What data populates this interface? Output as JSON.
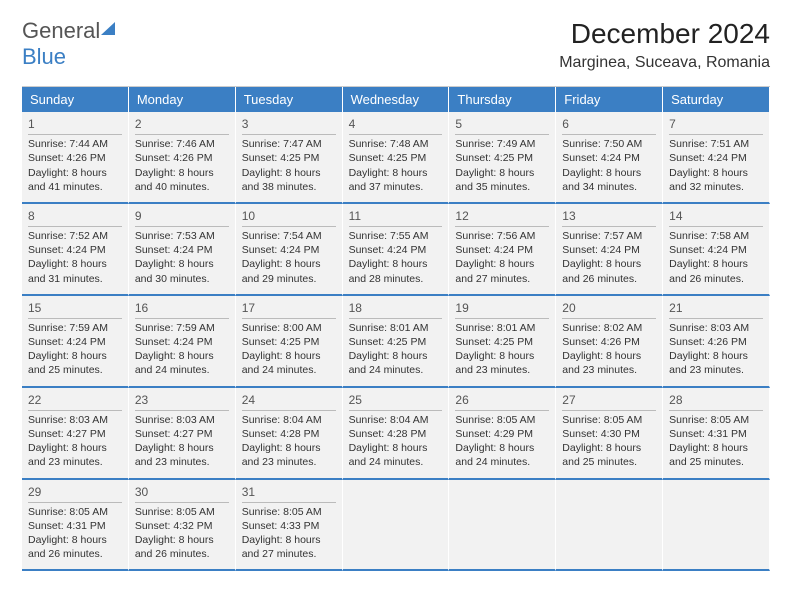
{
  "logo": {
    "text1": "General",
    "text2": "Blue"
  },
  "title": "December 2024",
  "location": "Marginea, Suceava, Romania",
  "colors": {
    "header_bg": "#3b7fc4",
    "header_text": "#ffffff",
    "cell_bg": "#f2f2f2",
    "row_border": "#3b7fc4",
    "logo_blue": "#3b7fc4",
    "text": "#333333"
  },
  "day_headers": [
    "Sunday",
    "Monday",
    "Tuesday",
    "Wednesday",
    "Thursday",
    "Friday",
    "Saturday"
  ],
  "weeks": [
    [
      {
        "n": "1",
        "rise": "7:44 AM",
        "set": "4:26 PM",
        "dl": "8 hours and 41 minutes."
      },
      {
        "n": "2",
        "rise": "7:46 AM",
        "set": "4:26 PM",
        "dl": "8 hours and 40 minutes."
      },
      {
        "n": "3",
        "rise": "7:47 AM",
        "set": "4:25 PM",
        "dl": "8 hours and 38 minutes."
      },
      {
        "n": "4",
        "rise": "7:48 AM",
        "set": "4:25 PM",
        "dl": "8 hours and 37 minutes."
      },
      {
        "n": "5",
        "rise": "7:49 AM",
        "set": "4:25 PM",
        "dl": "8 hours and 35 minutes."
      },
      {
        "n": "6",
        "rise": "7:50 AM",
        "set": "4:24 PM",
        "dl": "8 hours and 34 minutes."
      },
      {
        "n": "7",
        "rise": "7:51 AM",
        "set": "4:24 PM",
        "dl": "8 hours and 32 minutes."
      }
    ],
    [
      {
        "n": "8",
        "rise": "7:52 AM",
        "set": "4:24 PM",
        "dl": "8 hours and 31 minutes."
      },
      {
        "n": "9",
        "rise": "7:53 AM",
        "set": "4:24 PM",
        "dl": "8 hours and 30 minutes."
      },
      {
        "n": "10",
        "rise": "7:54 AM",
        "set": "4:24 PM",
        "dl": "8 hours and 29 minutes."
      },
      {
        "n": "11",
        "rise": "7:55 AM",
        "set": "4:24 PM",
        "dl": "8 hours and 28 minutes."
      },
      {
        "n": "12",
        "rise": "7:56 AM",
        "set": "4:24 PM",
        "dl": "8 hours and 27 minutes."
      },
      {
        "n": "13",
        "rise": "7:57 AM",
        "set": "4:24 PM",
        "dl": "8 hours and 26 minutes."
      },
      {
        "n": "14",
        "rise": "7:58 AM",
        "set": "4:24 PM",
        "dl": "8 hours and 26 minutes."
      }
    ],
    [
      {
        "n": "15",
        "rise": "7:59 AM",
        "set": "4:24 PM",
        "dl": "8 hours and 25 minutes."
      },
      {
        "n": "16",
        "rise": "7:59 AM",
        "set": "4:24 PM",
        "dl": "8 hours and 24 minutes."
      },
      {
        "n": "17",
        "rise": "8:00 AM",
        "set": "4:25 PM",
        "dl": "8 hours and 24 minutes."
      },
      {
        "n": "18",
        "rise": "8:01 AM",
        "set": "4:25 PM",
        "dl": "8 hours and 24 minutes."
      },
      {
        "n": "19",
        "rise": "8:01 AM",
        "set": "4:25 PM",
        "dl": "8 hours and 23 minutes."
      },
      {
        "n": "20",
        "rise": "8:02 AM",
        "set": "4:26 PM",
        "dl": "8 hours and 23 minutes."
      },
      {
        "n": "21",
        "rise": "8:03 AM",
        "set": "4:26 PM",
        "dl": "8 hours and 23 minutes."
      }
    ],
    [
      {
        "n": "22",
        "rise": "8:03 AM",
        "set": "4:27 PM",
        "dl": "8 hours and 23 minutes."
      },
      {
        "n": "23",
        "rise": "8:03 AM",
        "set": "4:27 PM",
        "dl": "8 hours and 23 minutes."
      },
      {
        "n": "24",
        "rise": "8:04 AM",
        "set": "4:28 PM",
        "dl": "8 hours and 23 minutes."
      },
      {
        "n": "25",
        "rise": "8:04 AM",
        "set": "4:28 PM",
        "dl": "8 hours and 24 minutes."
      },
      {
        "n": "26",
        "rise": "8:05 AM",
        "set": "4:29 PM",
        "dl": "8 hours and 24 minutes."
      },
      {
        "n": "27",
        "rise": "8:05 AM",
        "set": "4:30 PM",
        "dl": "8 hours and 25 minutes."
      },
      {
        "n": "28",
        "rise": "8:05 AM",
        "set": "4:31 PM",
        "dl": "8 hours and 25 minutes."
      }
    ],
    [
      {
        "n": "29",
        "rise": "8:05 AM",
        "set": "4:31 PM",
        "dl": "8 hours and 26 minutes."
      },
      {
        "n": "30",
        "rise": "8:05 AM",
        "set": "4:32 PM",
        "dl": "8 hours and 26 minutes."
      },
      {
        "n": "31",
        "rise": "8:05 AM",
        "set": "4:33 PM",
        "dl": "8 hours and 27 minutes."
      },
      null,
      null,
      null,
      null
    ]
  ],
  "labels": {
    "sunrise": "Sunrise:",
    "sunset": "Sunset:",
    "daylight": "Daylight:"
  }
}
